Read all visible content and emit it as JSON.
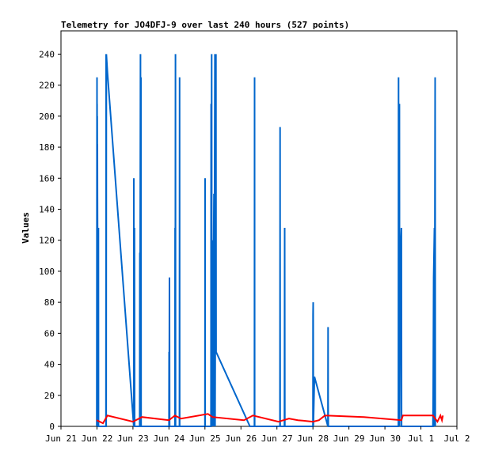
{
  "chart_data": {
    "type": "line",
    "title": "Telemetry for JO4DFJ-9 over last 240 hours (527 points)",
    "xlabel": "",
    "ylabel": "Values",
    "x_axis_type": "time",
    "x_range": [
      "2023-06-21 00:00",
      "2023-07-02 00:00"
    ],
    "ylim": [
      0,
      255
    ],
    "y_ticks": [
      0,
      20,
      40,
      60,
      80,
      100,
      120,
      140,
      160,
      180,
      200,
      220,
      240
    ],
    "x_ticks": [
      {
        "label": "Jun 21",
        "date": "2023-06-21 00:00"
      },
      {
        "label": "Jun 22",
        "date": "2023-06-22 00:00"
      },
      {
        "label": "Jun 23",
        "date": "2023-06-23 00:00"
      },
      {
        "label": "Jun 24",
        "date": "2023-06-24 00:00"
      },
      {
        "label": "Jun 25",
        "date": "2023-06-25 00:00"
      },
      {
        "label": "Jun 26",
        "date": "2023-06-26 00:00"
      },
      {
        "label": "Jun 27",
        "date": "2023-06-27 00:00"
      },
      {
        "label": "Jun 28",
        "date": "2023-06-28 00:00"
      },
      {
        "label": "Jun 29",
        "date": "2023-06-29 00:00"
      },
      {
        "label": "Jun 30",
        "date": "2023-06-30 00:00"
      },
      {
        "label": "Jul 1",
        "date": "2023-07-01 00:00"
      },
      {
        "label": "Jul 2",
        "date": "2023-07-02 00:00"
      }
    ],
    "grid": false,
    "legend": "none",
    "series": [
      {
        "color": "#0066cc",
        "points": [
          [
            "2023-06-21 23:53",
            0
          ],
          [
            "2023-06-22 00:00",
            225
          ],
          [
            "2023-06-22 00:04",
            0
          ],
          [
            "2023-06-22 00:05",
            208
          ],
          [
            "2023-06-22 00:09",
            0
          ],
          [
            "2023-06-22 00:10",
            200
          ],
          [
            "2023-06-22 00:13",
            164
          ],
          [
            "2023-06-22 00:17",
            182
          ],
          [
            "2023-06-22 00:21",
            148
          ],
          [
            "2023-06-22 00:25",
            128
          ],
          [
            "2023-06-22 00:29",
            112
          ],
          [
            "2023-06-22 00:33",
            96
          ],
          [
            "2023-06-22 00:37",
            80
          ],
          [
            "2023-06-22 00:41",
            64
          ],
          [
            "2023-06-22 00:45",
            48
          ],
          [
            "2023-06-22 00:49",
            32
          ],
          [
            "2023-06-22 00:53",
            16
          ],
          [
            "2023-06-22 00:57",
            128
          ],
          [
            "2023-06-22 01:01",
            0
          ],
          [
            "2023-06-22 06:00",
            0
          ],
          [
            "2023-06-22 06:05",
            240
          ],
          [
            "2023-06-22 06:10",
            0
          ],
          [
            "2023-06-22 06:15",
            240
          ],
          [
            "2023-06-22 07:00",
            228
          ],
          [
            "2023-06-23 00:30",
            0
          ],
          [
            "2023-06-23 00:33",
            160
          ],
          [
            "2023-06-23 00:38",
            0
          ],
          [
            "2023-06-23 01:00",
            128
          ],
          [
            "2023-06-23 01:05",
            0
          ],
          [
            "2023-06-23 04:30",
            0
          ],
          [
            "2023-06-23 04:35",
            112
          ],
          [
            "2023-06-23 04:40",
            0
          ],
          [
            "2023-06-23 05:00",
            240
          ],
          [
            "2023-06-23 05:05",
            0
          ],
          [
            "2023-06-23 05:20",
            225
          ],
          [
            "2023-06-23 05:25",
            0
          ],
          [
            "2023-06-24 00:00",
            0
          ],
          [
            "2023-06-24 00:05",
            48
          ],
          [
            "2023-06-24 00:10",
            0
          ],
          [
            "2023-06-24 00:20",
            96
          ],
          [
            "2023-06-24 00:25",
            0
          ],
          [
            "2023-06-24 04:00",
            0
          ],
          [
            "2023-06-24 04:05",
            128
          ],
          [
            "2023-06-24 04:10",
            0
          ],
          [
            "2023-06-24 04:20",
            240
          ],
          [
            "2023-06-24 04:25",
            0
          ],
          [
            "2023-06-24 07:00",
            0
          ],
          [
            "2023-06-24 07:05",
            225
          ],
          [
            "2023-06-24 07:10",
            0
          ],
          [
            "2023-06-25 00:00",
            0
          ],
          [
            "2023-06-25 00:05",
            160
          ],
          [
            "2023-06-25 00:10",
            0
          ],
          [
            "2023-06-25 04:00",
            0
          ],
          [
            "2023-06-25 04:05",
            208
          ],
          [
            "2023-06-25 04:10",
            0
          ],
          [
            "2023-06-25 04:30",
            240
          ],
          [
            "2023-06-25 04:35",
            0
          ],
          [
            "2023-06-25 05:00",
            120
          ],
          [
            "2023-06-25 05:05",
            0
          ],
          [
            "2023-06-25 06:00",
            150
          ],
          [
            "2023-06-25 06:05",
            0
          ],
          [
            "2023-06-25 06:40",
            240
          ],
          [
            "2023-06-25 06:45",
            0
          ],
          [
            "2023-06-25 07:20",
            240
          ],
          [
            "2023-06-25 07:25",
            48
          ],
          [
            "2023-06-26 06:00",
            0
          ],
          [
            "2023-06-26 09:00",
            0
          ],
          [
            "2023-06-26 09:05",
            225
          ],
          [
            "2023-06-26 09:10",
            0
          ],
          [
            "2023-06-27 02:00",
            0
          ],
          [
            "2023-06-27 02:05",
            193
          ],
          [
            "2023-06-27 02:10",
            0
          ],
          [
            "2023-06-27 05:00",
            0
          ],
          [
            "2023-06-27 05:05",
            80
          ],
          [
            "2023-06-27 05:10",
            128
          ],
          [
            "2023-06-27 05:15",
            0
          ],
          [
            "2023-06-28 00:00",
            0
          ],
          [
            "2023-06-28 00:05",
            72
          ],
          [
            "2023-06-28 00:10",
            80
          ],
          [
            "2023-06-28 00:15",
            0
          ],
          [
            "2023-06-28 01:00",
            32
          ],
          [
            "2023-06-28 10:00",
            0
          ],
          [
            "2023-06-28 10:05",
            64
          ],
          [
            "2023-06-28 10:10",
            16
          ],
          [
            "2023-06-28 10:15",
            0
          ],
          [
            "2023-06-30 09:00",
            0
          ],
          [
            "2023-06-30 09:05",
            225
          ],
          [
            "2023-06-30 09:10",
            0
          ],
          [
            "2023-06-30 09:40",
            208
          ],
          [
            "2023-06-30 09:45",
            0
          ],
          [
            "2023-06-30 10:20",
            112
          ],
          [
            "2023-06-30 11:00",
            128
          ],
          [
            "2023-06-30 11:05",
            0
          ],
          [
            "2023-07-01 08:00",
            0
          ],
          [
            "2023-07-01 08:10",
            16
          ],
          [
            "2023-07-01 08:30",
            96
          ],
          [
            "2023-07-01 09:00",
            128
          ],
          [
            "2023-07-01 09:05",
            0
          ],
          [
            "2023-07-01 09:30",
            225
          ],
          [
            "2023-07-01 09:35",
            0
          ]
        ]
      },
      {
        "color": "#ff0000",
        "points": [
          [
            "2023-06-21 23:50",
            4
          ],
          [
            "2023-06-22 04:00",
            2
          ],
          [
            "2023-06-22 07:00",
            7
          ],
          [
            "2023-06-23 00:00",
            3
          ],
          [
            "2023-06-23 06:00",
            6
          ],
          [
            "2023-06-24 00:00",
            4
          ],
          [
            "2023-06-24 04:00",
            7
          ],
          [
            "2023-06-24 08:00",
            5
          ],
          [
            "2023-06-25 02:00",
            8
          ],
          [
            "2023-06-25 05:00",
            6
          ],
          [
            "2023-06-26 02:00",
            4
          ],
          [
            "2023-06-26 08:00",
            7
          ],
          [
            "2023-06-27 01:00",
            3
          ],
          [
            "2023-06-27 08:00",
            5
          ],
          [
            "2023-06-27 14:00",
            4
          ],
          [
            "2023-06-28 00:00",
            3
          ],
          [
            "2023-06-28 04:00",
            4
          ],
          [
            "2023-06-28 08:00",
            7
          ],
          [
            "2023-06-29 10:00",
            6
          ],
          [
            "2023-06-30 11:00",
            4
          ],
          [
            "2023-06-30 12:00",
            7
          ],
          [
            "2023-07-01 08:00",
            7
          ],
          [
            "2023-07-01 11:00",
            3
          ],
          [
            "2023-07-01 13:00",
            7
          ],
          [
            "2023-07-01 14:00",
            4
          ],
          [
            "2023-07-01 14:40",
            7
          ]
        ]
      }
    ]
  }
}
